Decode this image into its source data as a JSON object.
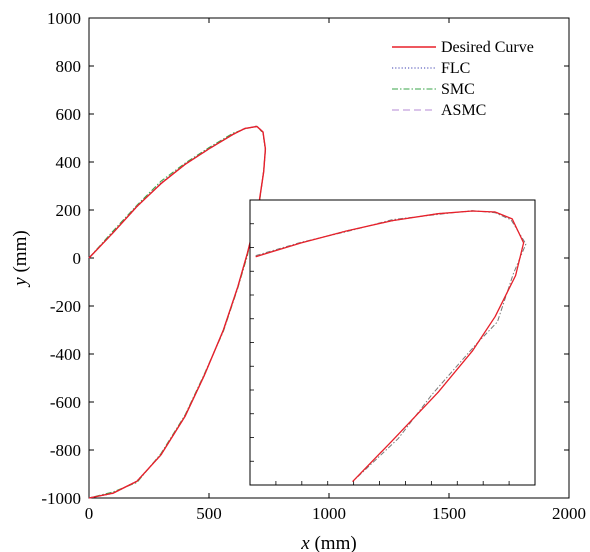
{
  "chart_data": {
    "type": "line",
    "xlabel_var": "x",
    "xlabel_unit": " (mm)",
    "ylabel_var": "y",
    "ylabel_unit": " (mm)",
    "xlim": [
      0,
      2000
    ],
    "ylim": [
      -1000,
      1000
    ],
    "xticks": [
      0,
      500,
      1000,
      1500,
      2000
    ],
    "yticks": [
      -1000,
      -800,
      -600,
      -400,
      -200,
      0,
      200,
      400,
      600,
      800,
      1000
    ],
    "grid": false,
    "legend_position": "top-right",
    "colors": {
      "desired": "#e8202a",
      "flc": "#3b3fb0",
      "smc": "#3aa64a",
      "asmc": "#b48ad4"
    },
    "series": [
      {
        "name": "Desired Curve",
        "key": "desired",
        "style": "solid",
        "x": [
          0,
          100,
          200,
          300,
          400,
          500,
          600,
          650,
          700,
          725,
          735,
          728,
          710,
          690,
          660,
          620,
          560,
          480,
          400,
          300,
          200,
          100,
          0
        ],
        "y": [
          0,
          105,
          215,
          310,
          390,
          455,
          515,
          540,
          548,
          525,
          455,
          360,
          240,
          140,
          20,
          -120,
          -300,
          -490,
          -660,
          -820,
          -930,
          -980,
          -1000
        ]
      },
      {
        "name": "FLC",
        "key": "flc",
        "style": "dotted",
        "x": [
          0,
          100,
          200,
          300,
          400,
          500,
          600,
          650,
          700,
          725,
          735,
          728,
          710,
          690,
          660,
          620,
          560,
          480,
          400,
          300,
          200,
          100,
          0
        ],
        "y": [
          0,
          106,
          214,
          312,
          389,
          456,
          514,
          541,
          547,
          524,
          456,
          359,
          241,
          139,
          21,
          -121,
          -299,
          -491,
          -659,
          -821,
          -929,
          -981,
          -1000
        ]
      },
      {
        "name": "SMC",
        "key": "smc",
        "style": "dashdot",
        "x": [
          0,
          100,
          200,
          300,
          400,
          500,
          600,
          650,
          700,
          725,
          735,
          728,
          710,
          690,
          660,
          620,
          560,
          480,
          400,
          300,
          200,
          100,
          0
        ],
        "y": [
          0,
          112,
          220,
          320,
          395,
          460,
          520,
          538,
          550,
          520,
          450,
          365,
          230,
          150,
          10,
          -125,
          -305,
          -485,
          -655,
          -815,
          -935,
          -975,
          -1000
        ]
      },
      {
        "name": "ASMC",
        "key": "asmc",
        "style": "dashed",
        "x": [
          0,
          100,
          200,
          300,
          400,
          500,
          600,
          650,
          700,
          725,
          735,
          728,
          710,
          690,
          660,
          620,
          560,
          480,
          400,
          300,
          200,
          100,
          0
        ],
        "y": [
          0,
          104,
          216,
          309,
          391,
          454,
          516,
          539,
          549,
          526,
          454,
          361,
          239,
          141,
          19,
          -119,
          -301,
          -489,
          -661,
          -819,
          -931,
          -979,
          -1000
        ]
      }
    ],
    "inset": {
      "desired_x": [
        500,
        540,
        580,
        620,
        660,
        690,
        710,
        725,
        735,
        728,
        710,
        690,
        660,
        620,
        585
      ],
      "desired_y": [
        415,
        455,
        490,
        520,
        540,
        548,
        545,
        525,
        455,
        360,
        240,
        140,
        20,
        -120,
        -240
      ],
      "smc_x": [
        500,
        540,
        580,
        620,
        660,
        690,
        710,
        724,
        737,
        726,
        712,
        692,
        655,
        625,
        585
      ],
      "smc_y": [
        418,
        457,
        488,
        523,
        538,
        549,
        543,
        522,
        452,
        365,
        225,
        155,
        15,
        -115,
        -240
      ],
      "flc_x": [
        500,
        540,
        580,
        620,
        660,
        690,
        710,
        725,
        735,
        728,
        710,
        690,
        660,
        620,
        585
      ],
      "flc_y": [
        416,
        456,
        491,
        519,
        541,
        547,
        546,
        524,
        456,
        359,
        241,
        139,
        21,
        -121,
        -240
      ]
    }
  }
}
